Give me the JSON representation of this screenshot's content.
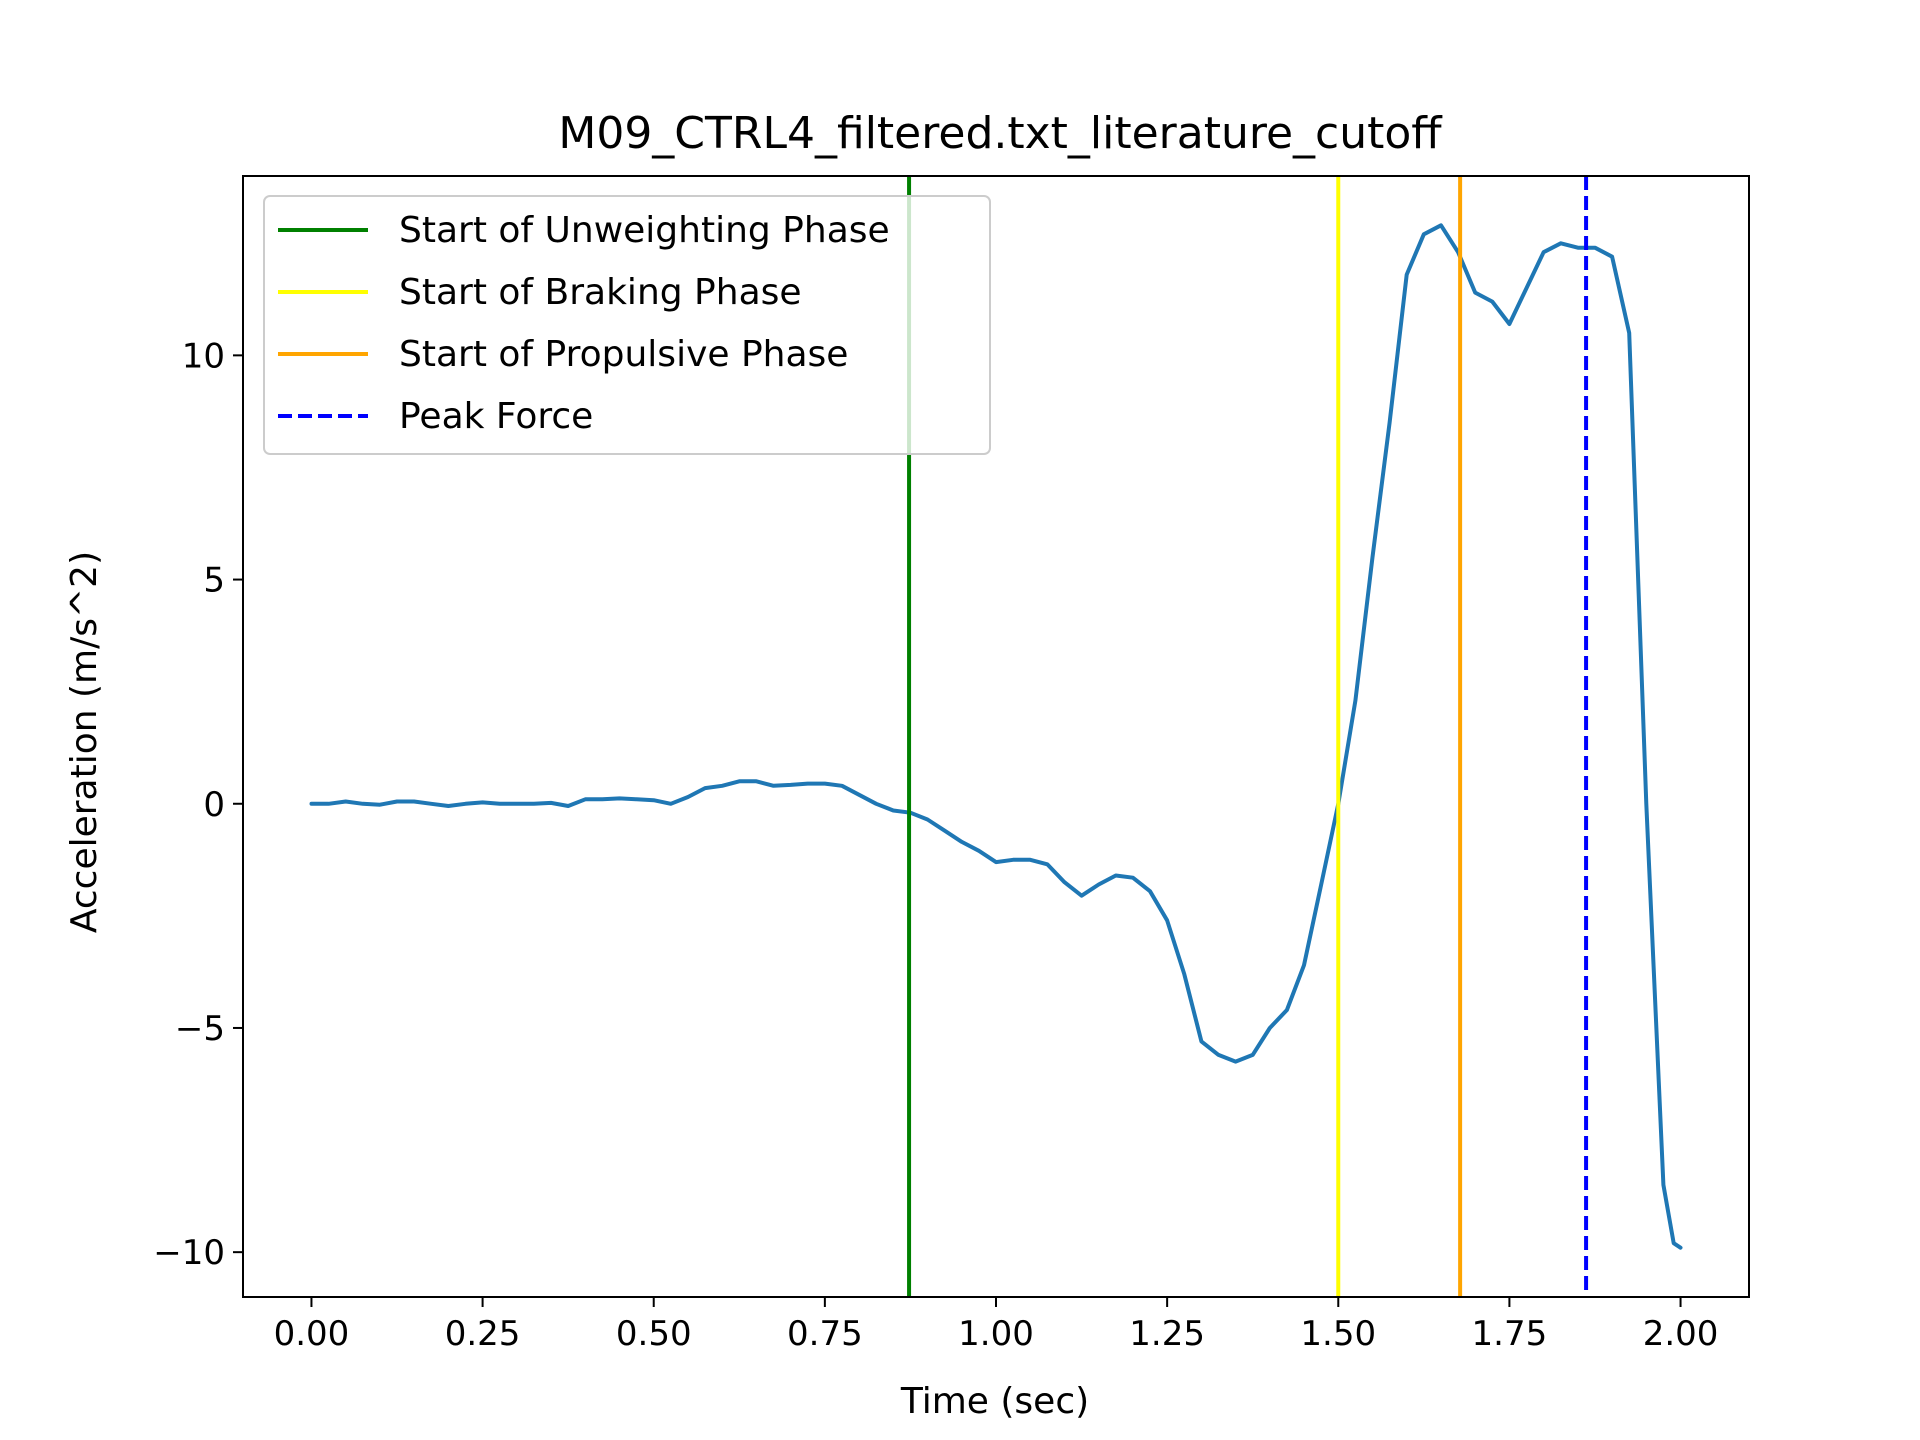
{
  "chart_data": {
    "type": "line",
    "title": "M09_CTRL4_filtered.txt_literature_cutoff",
    "xlabel": "Time (sec)",
    "ylabel": "Acceleration (m/s^2)",
    "xlim": [
      -0.1,
      2.1
    ],
    "ylim": [
      -11,
      14
    ],
    "xticks": [
      0.0,
      0.25,
      0.5,
      0.75,
      1.0,
      1.25,
      1.5,
      1.75,
      2.0
    ],
    "xtick_labels": [
      "0.00",
      "0.25",
      "0.50",
      "0.75",
      "1.00",
      "1.25",
      "1.50",
      "1.75",
      "2.00"
    ],
    "yticks": [
      -10,
      -5,
      0,
      5,
      10
    ],
    "ytick_labels": [
      "−10",
      "−5",
      "0",
      "5",
      "10"
    ],
    "grid": false,
    "legend_position": "upper-left",
    "series": [
      {
        "name": "Acceleration",
        "color": "#1f77b4",
        "x": [
          0.0,
          0.025,
          0.05,
          0.075,
          0.1,
          0.125,
          0.15,
          0.175,
          0.2,
          0.225,
          0.25,
          0.275,
          0.3,
          0.325,
          0.35,
          0.375,
          0.4,
          0.425,
          0.45,
          0.475,
          0.5,
          0.525,
          0.55,
          0.575,
          0.6,
          0.625,
          0.65,
          0.675,
          0.7,
          0.725,
          0.75,
          0.775,
          0.8,
          0.825,
          0.85,
          0.875,
          0.9,
          0.925,
          0.95,
          0.975,
          1.0,
          1.025,
          1.05,
          1.075,
          1.1,
          1.125,
          1.15,
          1.175,
          1.2,
          1.225,
          1.25,
          1.275,
          1.3,
          1.325,
          1.35,
          1.375,
          1.4,
          1.425,
          1.45,
          1.475,
          1.5,
          1.525,
          1.55,
          1.575,
          1.6,
          1.625,
          1.65,
          1.675,
          1.7,
          1.725,
          1.75,
          1.775,
          1.8,
          1.825,
          1.85,
          1.875,
          1.9,
          1.925,
          1.95,
          1.975,
          1.99,
          2.0
        ],
        "y": [
          0.0,
          0.0,
          0.05,
          0.0,
          -0.02,
          0.05,
          0.05,
          0.0,
          -0.05,
          0.0,
          0.03,
          0.0,
          0.0,
          0.0,
          0.02,
          -0.05,
          0.1,
          0.1,
          0.12,
          0.1,
          0.08,
          0.0,
          0.15,
          0.35,
          0.4,
          0.5,
          0.5,
          0.4,
          0.42,
          0.45,
          0.45,
          0.4,
          0.2,
          0.0,
          -0.15,
          -0.2,
          -0.35,
          -0.6,
          -0.85,
          -1.05,
          -1.3,
          -1.25,
          -1.25,
          -1.35,
          -1.75,
          -2.05,
          -1.8,
          -1.6,
          -1.65,
          -1.95,
          -2.6,
          -3.8,
          -5.3,
          -5.6,
          -5.75,
          -5.6,
          -5.0,
          -4.6,
          -3.6,
          -1.8,
          0.0,
          2.3,
          5.5,
          8.5,
          11.8,
          12.7,
          12.9,
          12.3,
          11.4,
          11.2,
          10.7,
          11.5,
          12.3,
          12.5,
          12.4,
          12.4,
          12.2,
          10.5,
          0.0,
          -8.5,
          -9.8,
          -9.9
        ]
      }
    ],
    "vlines": [
      {
        "label": "Start of Unweighting Phase",
        "x": 0.873,
        "color": "#008000",
        "style": "solid"
      },
      {
        "label": "Start of Braking Phase",
        "x": 1.5,
        "color": "#ffff00",
        "style": "solid"
      },
      {
        "label": "Start of Propulsive Phase",
        "x": 1.678,
        "color": "#ffa500",
        "style": "solid"
      },
      {
        "label": "Peak Force",
        "x": 1.862,
        "color": "#0000ff",
        "style": "dashed"
      }
    ]
  }
}
